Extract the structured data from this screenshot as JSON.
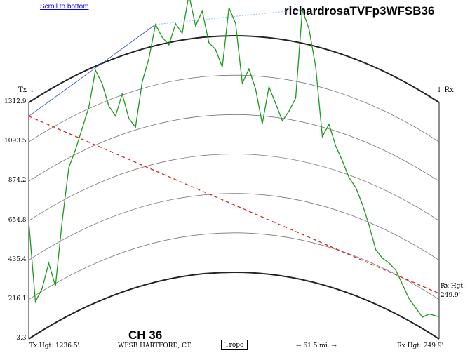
{
  "links": {
    "scroll_to_bottom": "Scroll to bottom"
  },
  "title": "richardrosaTVFp3WFSB36",
  "channel": "CH 36",
  "corners": {
    "tx": "Tx ↓",
    "rx": "↓ Rx"
  },
  "y_axis_labels": [
    "1312.9'",
    "1093.5'",
    "874.2'",
    "654.8'",
    "435.4'",
    "216.1'",
    "-3.3'"
  ],
  "rx_side": {
    "line1": "Rx Hgt:",
    "line2": "249.9'"
  },
  "footer": {
    "tx_hgt": "Tx Hgt: 1236.5'",
    "station": "WFSB HARTFORD, CT",
    "tropo_button": "Tropo",
    "distance": "← 61.5 mi. →",
    "rx_hgt": "Rx Hgt: 249.9'"
  },
  "colors": {
    "terrain": "#1a9a1a",
    "los_line": "#dd2222",
    "path_line": "#3355dd",
    "path_line_light": "#88bbee",
    "earth_curve": "#222222",
    "grid_curve": "#777777",
    "link": "#0000ee"
  },
  "chart_data": {
    "type": "line",
    "xlabel": "",
    "ylabel": "",
    "distance_mi": 61.5,
    "y_ticks": [
      1312.9,
      1093.5,
      874.2,
      654.8,
      435.4,
      216.1,
      -3.3
    ],
    "tx_height_ft": 1236.5,
    "rx_height_ft": 249.9,
    "series": [
      {
        "name": "",
        "x": [
          0,
          1,
          2,
          3,
          4,
          5,
          6,
          7,
          8,
          9,
          10,
          11,
          12,
          13,
          14,
          15,
          16,
          17,
          18,
          19,
          20,
          21,
          22,
          23,
          24,
          25,
          26,
          27,
          28,
          29,
          30,
          31,
          32,
          33,
          34,
          35,
          36,
          37,
          38,
          39,
          40,
          41,
          42,
          43,
          44,
          45,
          46,
          47,
          48,
          49,
          50,
          51,
          52,
          53,
          54,
          55,
          56,
          57,
          58,
          59,
          60,
          61.5
        ],
        "values": [
          650,
          180,
          230,
          350,
          200,
          540,
          820,
          900,
          1000,
          1100,
          1290,
          1200,
          1060,
          990,
          1100,
          950,
          890,
          1130,
          1250,
          1430,
          1350,
          1300,
          1410,
          1350,
          1560,
          1380,
          1460,
          1280,
          1240,
          1140,
          1470,
          1380,
          1050,
          1130,
          1020,
          830,
          1040,
          950,
          860,
          920,
          1000,
          1500,
          1400,
          1200,
          820,
          900,
          790,
          720,
          640,
          600,
          520,
          420,
          300,
          270,
          260,
          240,
          180,
          120,
          90,
          60,
          100,
          120
        ]
      }
    ]
  }
}
